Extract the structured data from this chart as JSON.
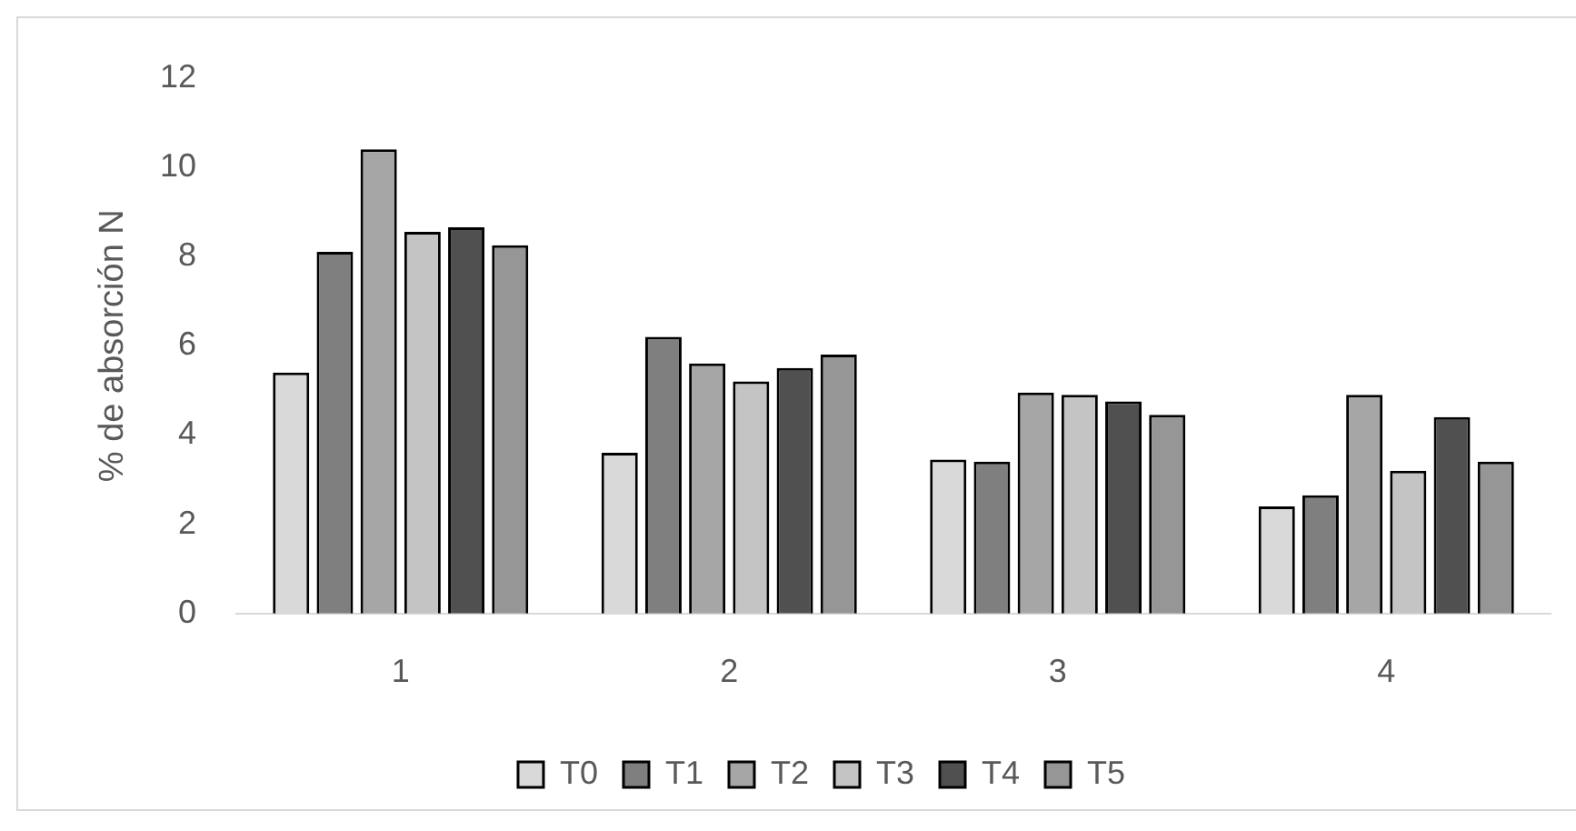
{
  "chart_data": {
    "type": "bar",
    "ylabel": "% de absorción N",
    "categories": [
      "1",
      "2",
      "3",
      "4"
    ],
    "series": [
      {
        "name": "T0",
        "color": "#d9d9d9",
        "values": [
          5.4,
          3.6,
          3.45,
          2.4
        ]
      },
      {
        "name": "T1",
        "color": "#7f7f7f",
        "values": [
          8.1,
          6.2,
          3.4,
          2.65
        ]
      },
      {
        "name": "T2",
        "color": "#a6a6a6",
        "values": [
          10.4,
          5.6,
          4.95,
          4.9
        ]
      },
      {
        "name": "T3",
        "color": "#c4c4c4",
        "values": [
          8.55,
          5.2,
          4.9,
          3.2
        ]
      },
      {
        "name": "T4",
        "color": "#505050",
        "values": [
          8.65,
          5.5,
          4.75,
          4.4
        ]
      },
      {
        "name": "T5",
        "color": "#969696",
        "values": [
          8.25,
          5.8,
          4.45,
          3.4
        ]
      }
    ],
    "ylim": [
      0,
      12
    ],
    "yticks": [
      0,
      2,
      4,
      6,
      8,
      10,
      12
    ],
    "legend": "bottom",
    "grid": false
  }
}
